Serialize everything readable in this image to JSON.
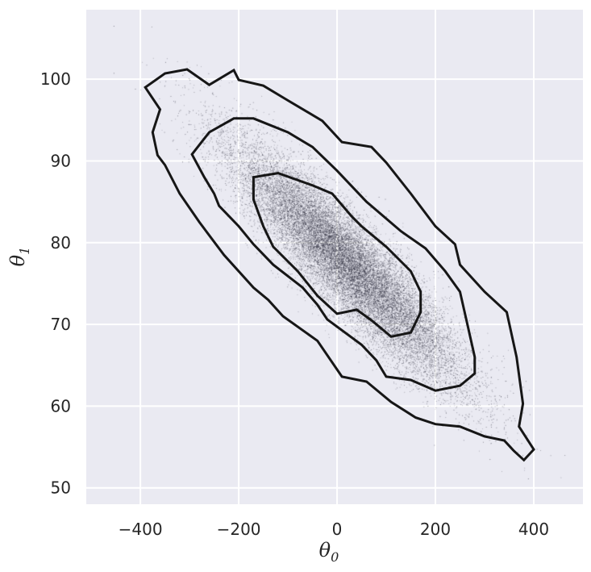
{
  "chart_data": {
    "type": "scatter",
    "title": "",
    "xlabel": "θ",
    "xlabel_sub": "0",
    "ylabel": "θ",
    "ylabel_sub": "1",
    "xlim": [
      -510,
      500
    ],
    "ylim": [
      48,
      108.5
    ],
    "xticks": [
      -400,
      -200,
      0,
      200,
      400
    ],
    "xtick_labels": [
      "−400",
      "−200",
      "0",
      "200",
      "400"
    ],
    "yticks": [
      50,
      60,
      70,
      80,
      90,
      100
    ],
    "yticks_labels": [
      "50",
      "60",
      "70",
      "80",
      "90",
      "100"
    ],
    "grid": true,
    "background": "#eaeaf2",
    "grid_color": "#ffffff",
    "point_color": "#1c1c2c",
    "contour_color": "#161616",
    "scatter_summary": {
      "n_points": 20000,
      "mean": [
        20,
        77.5
      ],
      "std": [
        115,
        7.2
      ],
      "correlation": -0.9
    },
    "contours": [
      {
        "level": "outer",
        "points": [
          [
            -390,
            99
          ],
          [
            -360,
            96.3
          ],
          [
            -375,
            93.5
          ],
          [
            -365,
            90.7
          ],
          [
            -350,
            89.5
          ],
          [
            -320,
            86
          ],
          [
            -280,
            82.5
          ],
          [
            -230,
            78.5
          ],
          [
            -170,
            74.5
          ],
          [
            -140,
            73
          ],
          [
            -110,
            71
          ],
          [
            -40,
            68
          ],
          [
            10,
            63.6
          ],
          [
            60,
            63
          ],
          [
            110,
            60.5
          ],
          [
            160,
            58.6
          ],
          [
            200,
            57.8
          ],
          [
            250,
            57.5
          ],
          [
            300,
            56.3
          ],
          [
            340,
            55.8
          ],
          [
            360,
            54.5
          ],
          [
            380,
            53.4
          ],
          [
            400,
            54.7
          ],
          [
            370,
            57.5
          ],
          [
            378,
            60.3
          ],
          [
            365,
            66
          ],
          [
            345,
            71.5
          ],
          [
            300,
            74
          ],
          [
            250,
            77.3
          ],
          [
            240,
            79.8
          ],
          [
            200,
            82
          ],
          [
            150,
            86
          ],
          [
            100,
            89.8
          ],
          [
            70,
            91.7
          ],
          [
            10,
            92.3
          ],
          [
            -30,
            94.9
          ],
          [
            -100,
            97.4
          ],
          [
            -150,
            99.2
          ],
          [
            -200,
            99.9
          ],
          [
            -210,
            101.1
          ],
          [
            -260,
            99.3
          ],
          [
            -305,
            101.2
          ],
          [
            -350,
            100.7
          ],
          [
            -390,
            99
          ]
        ]
      },
      {
        "level": "middle",
        "points": [
          [
            -295,
            90.8
          ],
          [
            -270,
            88
          ],
          [
            -250,
            86
          ],
          [
            -240,
            84.5
          ],
          [
            -200,
            82
          ],
          [
            -170,
            79.8
          ],
          [
            -130,
            77.3
          ],
          [
            -70,
            74.5
          ],
          [
            -40,
            72.4
          ],
          [
            -20,
            70.6
          ],
          [
            50,
            67.5
          ],
          [
            80,
            65.6
          ],
          [
            100,
            63.6
          ],
          [
            150,
            63.2
          ],
          [
            200,
            61.9
          ],
          [
            250,
            62.5
          ],
          [
            280,
            64
          ],
          [
            280,
            66
          ],
          [
            265,
            70
          ],
          [
            250,
            74
          ],
          [
            220,
            76.5
          ],
          [
            180,
            79.3
          ],
          [
            130,
            81.4
          ],
          [
            60,
            85
          ],
          [
            0,
            88.8
          ],
          [
            -50,
            91.7
          ],
          [
            -100,
            93.5
          ],
          [
            -170,
            95.2
          ],
          [
            -210,
            95.2
          ],
          [
            -260,
            93.5
          ],
          [
            -295,
            90.8
          ]
        ]
      },
      {
        "level": "inner",
        "points": [
          [
            -170,
            88
          ],
          [
            -170,
            85.3
          ],
          [
            -150,
            82
          ],
          [
            -130,
            79.5
          ],
          [
            -80,
            76.5
          ],
          [
            -40,
            73.5
          ],
          [
            0,
            71.3
          ],
          [
            40,
            71.8
          ],
          [
            70,
            70.5
          ],
          [
            110,
            68.5
          ],
          [
            150,
            69
          ],
          [
            170,
            71.5
          ],
          [
            170,
            74
          ],
          [
            150,
            76.5
          ],
          [
            100,
            79.5
          ],
          [
            50,
            82
          ],
          [
            30,
            83.2
          ],
          [
            -10,
            86
          ],
          [
            -50,
            87
          ],
          [
            -120,
            88.5
          ],
          [
            -170,
            88
          ]
        ]
      }
    ]
  }
}
